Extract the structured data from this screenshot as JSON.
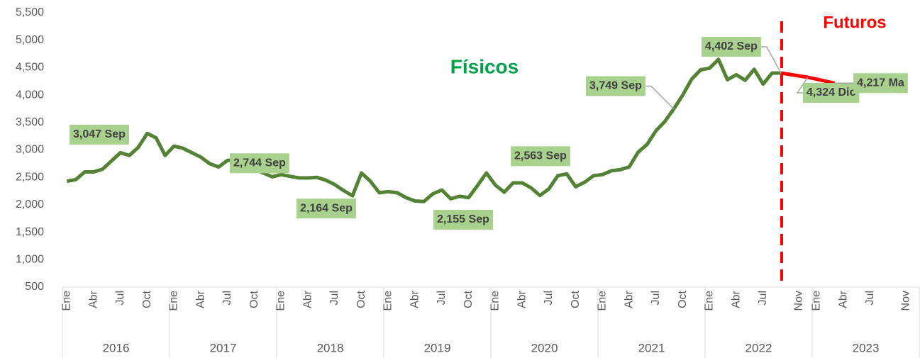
{
  "chart_data": {
    "type": "line",
    "annotations": [
      "Físicos",
      "Futuros"
    ],
    "categories": [
      "Ene",
      null,
      null,
      "Abr",
      null,
      null,
      "Jul",
      null,
      null,
      "Oct",
      null,
      null,
      "Ene",
      null,
      null,
      "Abr",
      null,
      null,
      "Jul",
      null,
      null,
      "Oct",
      null,
      null,
      "Ene",
      null,
      null,
      "Abr",
      null,
      null,
      "Jul",
      null,
      null,
      "Oct",
      null,
      null,
      "Ene",
      null,
      null,
      "Abr",
      null,
      null,
      "Jul",
      null,
      null,
      "Oct",
      null,
      null,
      "Ene",
      null,
      null,
      "Abr",
      null,
      null,
      "Jul",
      null,
      null,
      "Oct",
      null,
      null,
      "Ene",
      null,
      null,
      "Abr",
      null,
      null,
      "Jul",
      null,
      null,
      "Oct",
      null,
      null,
      "Ene",
      null,
      null,
      "Abr",
      null,
      null,
      "Jul",
      null,
      null,
      null,
      "Nov",
      null,
      "Ene",
      null,
      null,
      "Abr",
      null,
      null,
      "Jul",
      null,
      null,
      null,
      "Nov",
      null
    ],
    "groups": [
      "2016",
      "2017",
      "2018",
      "2019",
      "2020",
      "2021",
      "2022",
      "2023"
    ],
    "series": [
      {
        "color": "#548235",
        "values": [
          2430,
          2460,
          2600,
          2600,
          2650,
          2800,
          2950,
          2900,
          3047,
          3300,
          3220,
          2900,
          3070,
          3030,
          2950,
          2870,
          2750,
          2690,
          2810,
          2820,
          2744,
          2650,
          2580,
          2510,
          2550,
          2520,
          2490,
          2490,
          2500,
          2450,
          2370,
          2260,
          2164,
          2580,
          2430,
          2220,
          2240,
          2220,
          2130,
          2070,
          2060,
          2200,
          2270,
          2110,
          2155,
          2130,
          2350,
          2580,
          2360,
          2230,
          2400,
          2400,
          2310,
          2170,
          2290,
          2530,
          2563,
          2330,
          2410,
          2530,
          2550,
          2620,
          2640,
          2690,
          2960,
          3100,
          3350,
          3520,
          3749,
          4000,
          4290,
          4460,
          4490,
          4650,
          4280,
          4370,
          4270,
          4470,
          4200,
          4400,
          4402,
          null,
          null,
          null,
          null,
          null,
          null,
          null,
          null,
          null,
          null,
          null,
          null,
          null,
          null,
          null
        ],
        "value_labels": [
          null,
          null,
          null,
          null,
          null,
          null,
          null,
          null,
          "3,047 Sep",
          null,
          null,
          null,
          null,
          null,
          null,
          null,
          null,
          null,
          null,
          null,
          "2,744 Sep",
          null,
          null,
          null,
          null,
          null,
          null,
          null,
          null,
          null,
          null,
          null,
          "2,164 Sep",
          null,
          null,
          null,
          null,
          null,
          null,
          null,
          null,
          null,
          null,
          null,
          "2,155 Sep",
          null,
          null,
          null,
          null,
          null,
          null,
          null,
          null,
          null,
          null,
          null,
          "2,563 Sep",
          null,
          null,
          null,
          null,
          null,
          null,
          null,
          null,
          null,
          null,
          null,
          "3,749 Sep",
          null,
          null,
          null,
          null,
          null,
          null,
          null,
          null,
          null,
          null,
          null,
          "4,402 Sep",
          null,
          null,
          null,
          null,
          null,
          null,
          null,
          null,
          null,
          null,
          null,
          null,
          null,
          null,
          null
        ]
      },
      {
        "color": "#ff0000",
        "values": [
          null,
          null,
          null,
          null,
          null,
          null,
          null,
          null,
          null,
          null,
          null,
          null,
          null,
          null,
          null,
          null,
          null,
          null,
          null,
          null,
          null,
          null,
          null,
          null,
          null,
          null,
          null,
          null,
          null,
          null,
          null,
          null,
          null,
          null,
          null,
          null,
          null,
          null,
          null,
          null,
          null,
          null,
          null,
          null,
          null,
          null,
          null,
          null,
          null,
          null,
          null,
          null,
          null,
          null,
          null,
          null,
          null,
          null,
          null,
          null,
          null,
          null,
          null,
          null,
          null,
          null,
          null,
          null,
          null,
          null,
          null,
          null,
          null,
          null,
          null,
          null,
          null,
          null,
          null,
          null,
          4402,
          4376,
          4350,
          4324,
          4290,
          4253,
          4217,
          null,
          null,
          null,
          null,
          null,
          null,
          null,
          null,
          null
        ],
        "value_labels": [
          null,
          null,
          null,
          null,
          null,
          null,
          null,
          null,
          null,
          null,
          null,
          null,
          null,
          null,
          null,
          null,
          null,
          null,
          null,
          null,
          null,
          null,
          null,
          null,
          null,
          null,
          null,
          null,
          null,
          null,
          null,
          null,
          null,
          null,
          null,
          null,
          null,
          null,
          null,
          null,
          null,
          null,
          null,
          null,
          null,
          null,
          null,
          null,
          null,
          null,
          null,
          null,
          null,
          null,
          null,
          null,
          null,
          null,
          null,
          null,
          null,
          null,
          null,
          null,
          null,
          null,
          null,
          null,
          null,
          null,
          null,
          null,
          null,
          null,
          null,
          null,
          null,
          null,
          null,
          null,
          null,
          null,
          null,
          "4,324 Dic",
          null,
          null,
          "4,217 Ma",
          null,
          null,
          null,
          null,
          null,
          null,
          null,
          null,
          null
        ]
      }
    ],
    "ylim": [
      500,
      5500
    ],
    "yticks": [
      500,
      {
        "value": 1000,
        "label": "1,000"
      },
      {
        "value": 1500,
        "label": "1,500"
      },
      {
        "value": 2000,
        "label": "2,000"
      },
      {
        "value": 2500,
        "label": "2,500"
      },
      {
        "value": 3000,
        "label": "3,000"
      },
      {
        "value": 3500,
        "label": "3,500"
      },
      {
        "value": 4000,
        "label": "4,000"
      },
      {
        "value": 4500,
        "label": "4,500"
      },
      {
        "value": 5000,
        "label": "5,000"
      },
      {
        "value": 5500,
        "label": "5,500"
      }
    ],
    "grid": false
  }
}
